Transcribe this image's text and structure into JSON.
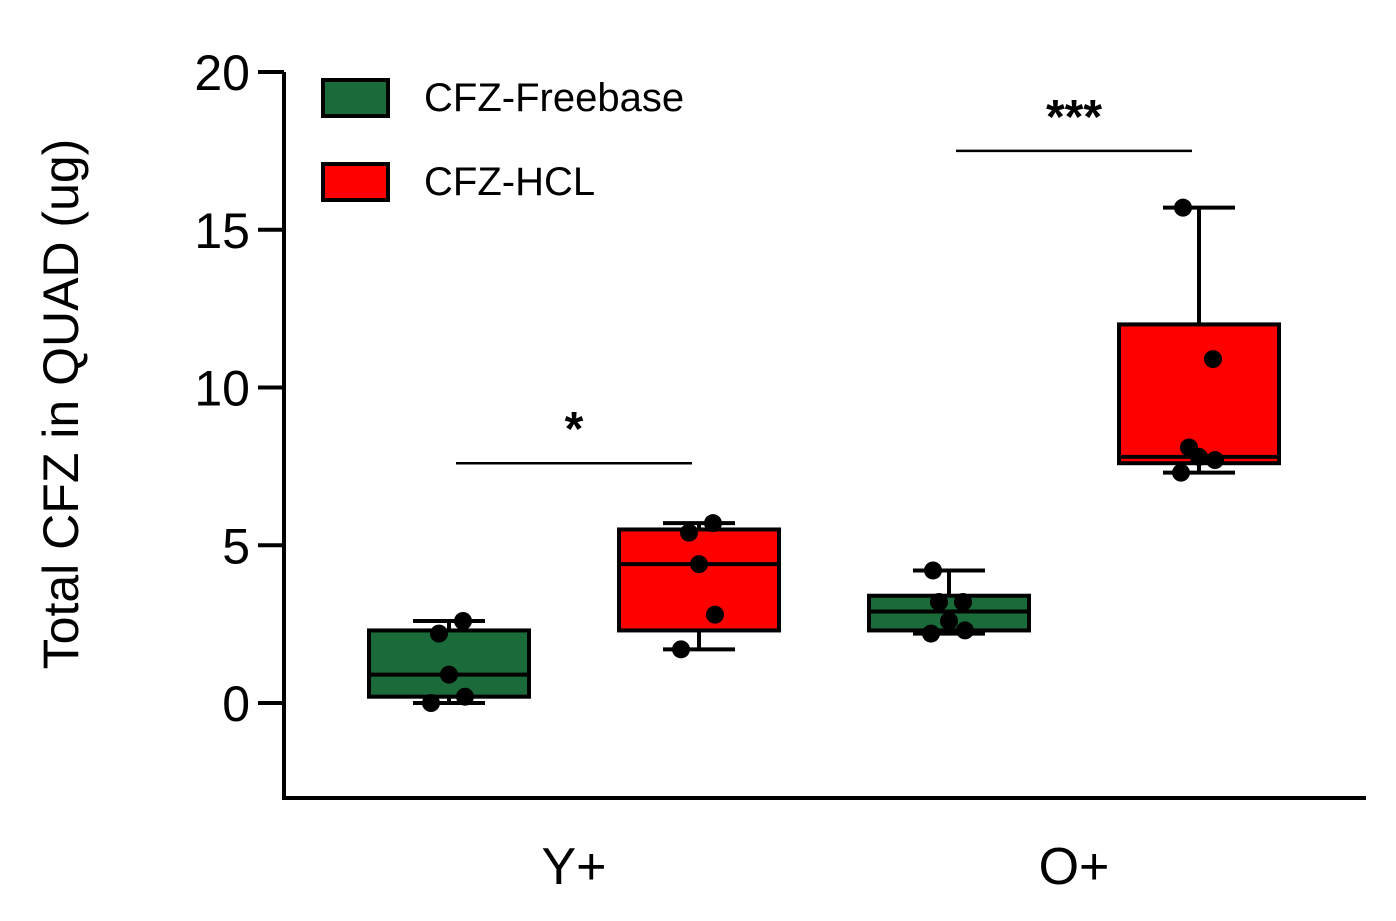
{
  "chart_data": {
    "type": "box",
    "ylabel": "Total CFZ in QUAD (ug)",
    "ylim": [
      -3,
      20
    ],
    "yticks": [
      0,
      5,
      10,
      15,
      20
    ],
    "categories": [
      "Y+",
      "O+"
    ],
    "legend_position": "top-left",
    "series": [
      {
        "name": "CFZ-Freebase",
        "color": "#1b6b3a",
        "boxes": [
          {
            "category": "Y+",
            "min": 0.0,
            "q1": 0.2,
            "median": 0.9,
            "q3": 2.3,
            "max": 2.6,
            "points": [
              0.0,
              0.2,
              0.9,
              2.2,
              2.6
            ]
          },
          {
            "category": "O+",
            "min": 2.2,
            "q1": 2.3,
            "median": 2.9,
            "q3": 3.4,
            "max": 4.2,
            "points": [
              2.2,
              2.3,
              2.6,
              3.2,
              3.2,
              4.2
            ]
          }
        ]
      },
      {
        "name": "CFZ-HCL",
        "color": "#ff0000",
        "boxes": [
          {
            "category": "Y+",
            "min": 1.7,
            "q1": 2.3,
            "median": 4.4,
            "q3": 5.5,
            "max": 5.7,
            "points": [
              1.7,
              2.8,
              4.4,
              5.4,
              5.7
            ]
          },
          {
            "category": "O+",
            "min": 7.3,
            "q1": 7.6,
            "median": 7.8,
            "q3": 12.0,
            "max": 15.7,
            "points": [
              7.3,
              7.7,
              7.8,
              8.1,
              10.9,
              15.7
            ]
          }
        ]
      }
    ],
    "significance": [
      {
        "category": "Y+",
        "label": "*",
        "y": 7.6
      },
      {
        "category": "O+",
        "label": "***",
        "y": 17.5
      }
    ]
  }
}
